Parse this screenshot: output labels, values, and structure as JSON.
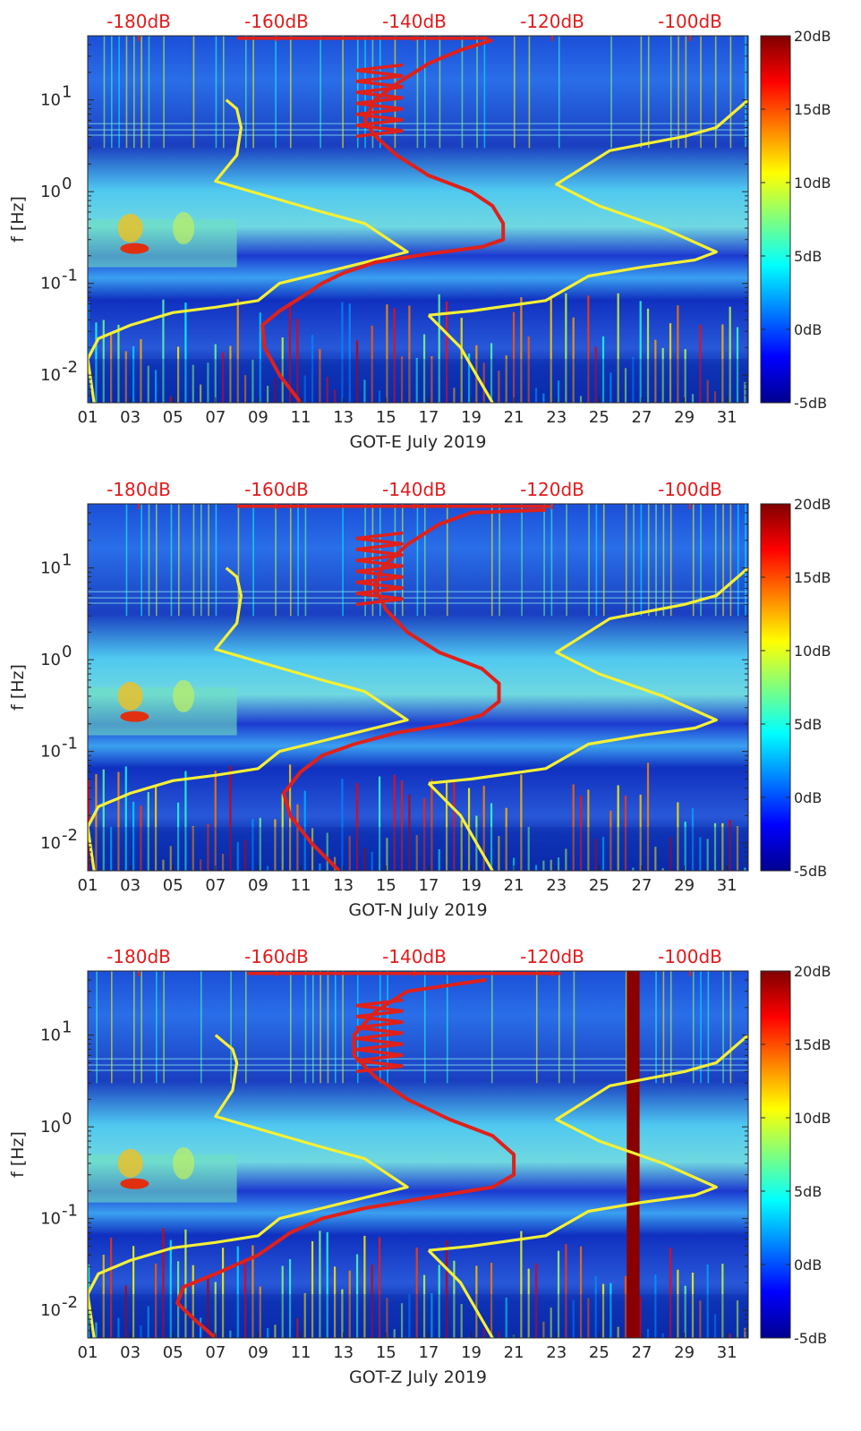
{
  "colors": {
    "yellow_curve": "#f5f035",
    "red_curve": "#e0201a",
    "top_axis_text": "#e41a1c",
    "colormap": "jet"
  },
  "chart_data": [
    {
      "type": "heatmap",
      "panel": "E",
      "xlabel": "GOT-E July 2019",
      "ylabel": "f [Hz]",
      "xlim": [
        1,
        32
      ],
      "ylim": [
        0.005,
        50
      ],
      "yscale": "log",
      "x_ticks": [
        "01",
        "03",
        "05",
        "07",
        "09",
        "11",
        "13",
        "15",
        "17",
        "19",
        "21",
        "23",
        "25",
        "27",
        "29",
        "31"
      ],
      "y_ticks": [
        "10^-2",
        "10^-1",
        "10^0",
        "10^1"
      ],
      "top_axis_ticks": [
        "-180dB",
        "-160dB",
        "-140dB",
        "-120dB",
        "-100dB"
      ],
      "colorbar": {
        "ticks": [
          "-5dB",
          "0dB",
          "5dB",
          "10dB",
          "15dB",
          "20dB"
        ],
        "range": [
          -5,
          20
        ]
      },
      "series": [
        {
          "color": "yellow",
          "points": [
            [
              7.5,
              10
            ],
            [
              8.0,
              8
            ],
            [
              8.2,
              5
            ],
            [
              8.0,
              2.5
            ],
            [
              7.0,
              1.3
            ],
            [
              12.0,
              0.6
            ],
            [
              14.0,
              0.45
            ],
            [
              16.0,
              0.22
            ],
            [
              12.0,
              0.13
            ],
            [
              10.0,
              0.1
            ],
            [
              9.0,
              0.065
            ],
            [
              7.0,
              0.055
            ],
            [
              5.0,
              0.048
            ],
            [
              3.0,
              0.035
            ],
            [
              1.5,
              0.025
            ],
            [
              1.0,
              0.015
            ],
            [
              1.3,
              0.005
            ]
          ]
        },
        {
          "color": "yellow",
          "points": [
            [
              17.0,
              0.045
            ],
            [
              19.0,
              0.05
            ],
            [
              22.5,
              0.065
            ],
            [
              24.5,
              0.12
            ],
            [
              27.0,
              0.15
            ],
            [
              29.5,
              0.18
            ],
            [
              30.5,
              0.22
            ],
            [
              28.0,
              0.4
            ],
            [
              25.0,
              0.7
            ],
            [
              23.0,
              1.2
            ],
            [
              25.5,
              2.8
            ],
            [
              29.0,
              4
            ],
            [
              30.5,
              5
            ],
            [
              32,
              10
            ]
          ]
        },
        {
          "color": "yellow",
          "points": [
            [
              17.0,
              0.045
            ],
            [
              18.5,
              0.02
            ],
            [
              20.0,
              0.005
            ]
          ]
        },
        {
          "color": "red",
          "points": [
            [
              11.0,
              0.005
            ],
            [
              10.0,
              0.01
            ],
            [
              9.3,
              0.02
            ],
            [
              9.2,
              0.035
            ],
            [
              10.0,
              0.05
            ],
            [
              11.0,
              0.07
            ],
            [
              12.0,
              0.1
            ],
            [
              13.0,
              0.13
            ],
            [
              14.5,
              0.17
            ],
            [
              17.0,
              0.21
            ],
            [
              19.5,
              0.25
            ],
            [
              20.5,
              0.3
            ],
            [
              20.5,
              0.45
            ],
            [
              20.0,
              0.7
            ],
            [
              19.0,
              1.0
            ],
            [
              17.0,
              1.5
            ],
            [
              15.5,
              2.5
            ],
            [
              14.5,
              4
            ],
            [
              14.0,
              6
            ],
            [
              14.5,
              10
            ],
            [
              15.5,
              15
            ],
            [
              17.0,
              25
            ],
            [
              18.5,
              35
            ],
            [
              20.0,
              45
            ]
          ]
        }
      ]
    },
    {
      "type": "heatmap",
      "panel": "N",
      "xlabel": "GOT-N July 2019",
      "ylabel": "f [Hz]",
      "xlim": [
        1,
        32
      ],
      "ylim": [
        0.005,
        50
      ],
      "yscale": "log",
      "x_ticks": [
        "01",
        "03",
        "05",
        "07",
        "09",
        "11",
        "13",
        "15",
        "17",
        "19",
        "21",
        "23",
        "25",
        "27",
        "29",
        "31"
      ],
      "y_ticks": [
        "10^-2",
        "10^-1",
        "10^0",
        "10^1"
      ],
      "top_axis_ticks": [
        "-180dB",
        "-160dB",
        "-140dB",
        "-120dB",
        "-100dB"
      ],
      "colorbar": {
        "ticks": [
          "-5dB",
          "0dB",
          "5dB",
          "10dB",
          "15dB",
          "20dB"
        ],
        "range": [
          -5,
          20
        ]
      },
      "series": [
        {
          "color": "yellow",
          "points": [
            [
              7.5,
              10
            ],
            [
              8.0,
              8
            ],
            [
              8.2,
              5
            ],
            [
              8.0,
              2.5
            ],
            [
              7.0,
              1.3
            ],
            [
              12.0,
              0.6
            ],
            [
              14.0,
              0.45
            ],
            [
              16.0,
              0.22
            ],
            [
              12.0,
              0.13
            ],
            [
              10.0,
              0.1
            ],
            [
              9.0,
              0.065
            ],
            [
              7.0,
              0.055
            ],
            [
              5.0,
              0.048
            ],
            [
              3.0,
              0.035
            ],
            [
              1.5,
              0.025
            ],
            [
              1.0,
              0.015
            ],
            [
              1.3,
              0.005
            ]
          ]
        },
        {
          "color": "yellow",
          "points": [
            [
              17.0,
              0.045
            ],
            [
              19.0,
              0.05
            ],
            [
              22.5,
              0.065
            ],
            [
              24.5,
              0.12
            ],
            [
              27.0,
              0.15
            ],
            [
              29.5,
              0.18
            ],
            [
              30.5,
              0.22
            ],
            [
              28.0,
              0.4
            ],
            [
              25.0,
              0.7
            ],
            [
              23.0,
              1.2
            ],
            [
              25.5,
              2.8
            ],
            [
              29.0,
              4
            ],
            [
              30.5,
              5
            ],
            [
              32,
              10
            ]
          ]
        },
        {
          "color": "yellow",
          "points": [
            [
              17.0,
              0.045
            ],
            [
              18.5,
              0.02
            ],
            [
              20.0,
              0.005
            ]
          ]
        },
        {
          "color": "red",
          "points": [
            [
              12.8,
              0.005
            ],
            [
              11.5,
              0.01
            ],
            [
              10.5,
              0.02
            ],
            [
              10.2,
              0.035
            ],
            [
              11.0,
              0.06
            ],
            [
              12.0,
              0.09
            ],
            [
              13.5,
              0.12
            ],
            [
              15.5,
              0.16
            ],
            [
              18.0,
              0.2
            ],
            [
              19.5,
              0.25
            ],
            [
              20.3,
              0.35
            ],
            [
              20.3,
              0.55
            ],
            [
              19.5,
              0.8
            ],
            [
              17.5,
              1.2
            ],
            [
              16.0,
              2
            ],
            [
              15.0,
              3.5
            ],
            [
              14.5,
              6
            ],
            [
              14.8,
              10
            ],
            [
              16.0,
              18
            ],
            [
              17.5,
              30
            ],
            [
              19.0,
              40
            ],
            [
              22.5,
              43
            ]
          ]
        }
      ]
    },
    {
      "type": "heatmap",
      "panel": "Z",
      "xlabel": "GOT-Z July 2019",
      "ylabel": "f [Hz]",
      "xlim": [
        1,
        32
      ],
      "ylim": [
        0.005,
        50
      ],
      "yscale": "log",
      "x_ticks": [
        "01",
        "03",
        "05",
        "07",
        "09",
        "11",
        "13",
        "15",
        "17",
        "19",
        "21",
        "23",
        "25",
        "27",
        "29",
        "31"
      ],
      "y_ticks": [
        "10^-2",
        "10^-1",
        "10^0",
        "10^1"
      ],
      "top_axis_ticks": [
        "-180dB",
        "-160dB",
        "-140dB",
        "-120dB",
        "-100dB"
      ],
      "colorbar": {
        "ticks": [
          "-5dB",
          "0dB",
          "5dB",
          "10dB",
          "15dB",
          "20dB"
        ],
        "range": [
          -5,
          20
        ]
      },
      "series": [
        {
          "color": "yellow",
          "points": [
            [
              7.0,
              10
            ],
            [
              7.8,
              7
            ],
            [
              8.0,
              5
            ],
            [
              7.8,
              2.5
            ],
            [
              7.0,
              1.3
            ],
            [
              12.0,
              0.6
            ],
            [
              14.0,
              0.45
            ],
            [
              16.0,
              0.22
            ],
            [
              12.0,
              0.13
            ],
            [
              10.0,
              0.1
            ],
            [
              9.0,
              0.065
            ],
            [
              7.0,
              0.055
            ],
            [
              5.0,
              0.048
            ],
            [
              3.0,
              0.035
            ],
            [
              1.5,
              0.025
            ],
            [
              1.0,
              0.015
            ],
            [
              1.3,
              0.005
            ]
          ]
        },
        {
          "color": "yellow",
          "points": [
            [
              17.0,
              0.045
            ],
            [
              19.0,
              0.05
            ],
            [
              22.5,
              0.065
            ],
            [
              24.5,
              0.12
            ],
            [
              27.0,
              0.15
            ],
            [
              29.5,
              0.18
            ],
            [
              30.5,
              0.22
            ],
            [
              28.0,
              0.4
            ],
            [
              25.0,
              0.7
            ],
            [
              23.0,
              1.2
            ],
            [
              25.5,
              2.8
            ],
            [
              29.0,
              4
            ],
            [
              30.5,
              5
            ],
            [
              32,
              10
            ]
          ]
        },
        {
          "color": "yellow",
          "points": [
            [
              17.0,
              0.045
            ],
            [
              18.5,
              0.02
            ],
            [
              20.0,
              0.005
            ]
          ]
        },
        {
          "color": "red",
          "points": [
            [
              7.0,
              0.005
            ],
            [
              6.0,
              0.008
            ],
            [
              5.2,
              0.012
            ],
            [
              5.5,
              0.018
            ],
            [
              7.0,
              0.025
            ],
            [
              9.0,
              0.04
            ],
            [
              10.5,
              0.07
            ],
            [
              12.0,
              0.1
            ],
            [
              14.0,
              0.13
            ],
            [
              17.0,
              0.17
            ],
            [
              20.0,
              0.22
            ],
            [
              21.0,
              0.3
            ],
            [
              21.0,
              0.5
            ],
            [
              20.0,
              0.8
            ],
            [
              18.0,
              1.2
            ],
            [
              16.0,
              2
            ],
            [
              14.5,
              3.5
            ],
            [
              13.5,
              6
            ],
            [
              13.5,
              10
            ],
            [
              14.5,
              18
            ],
            [
              16.0,
              30
            ],
            [
              19.7,
              40
            ]
          ]
        }
      ]
    }
  ]
}
